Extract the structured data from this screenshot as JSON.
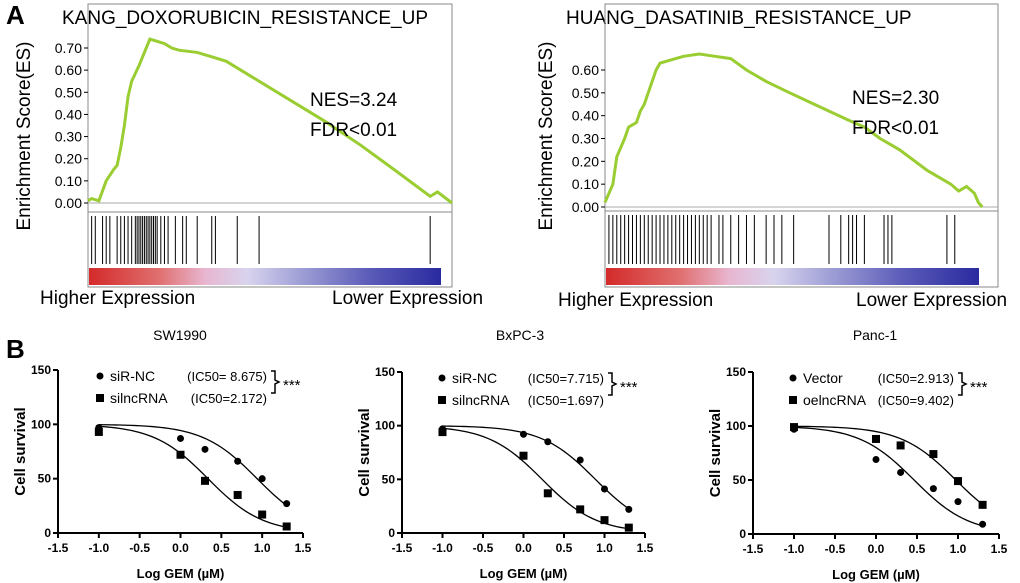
{
  "panel_labels": {
    "a": "A",
    "b": "B"
  },
  "chart_data": [
    {
      "type": "line",
      "panel": "A",
      "title": "KANG_DOXORUBICIN_RESISTANCE_UP",
      "ylabel": "Enrichment Score(ES)",
      "yticks": [
        "0.00",
        "0.10",
        "0.20",
        "0.30",
        "0.40",
        "0.50",
        "0.60",
        "0.70"
      ],
      "ylim": [
        0,
        0.76
      ],
      "annotations": [
        "NES=3.24",
        "FDR<0.01"
      ],
      "left_label": "Higher Expression",
      "right_label": "Lower Expression",
      "line_color": "#9acd32",
      "es_curve": [
        [
          0,
          0.01
        ],
        [
          1,
          0.02
        ],
        [
          3,
          0.01
        ],
        [
          5,
          0.1
        ],
        [
          7,
          0.15
        ],
        [
          8,
          0.17
        ],
        [
          9,
          0.25
        ],
        [
          10,
          0.35
        ],
        [
          11,
          0.48
        ],
        [
          12,
          0.55
        ],
        [
          14,
          0.62
        ],
        [
          15,
          0.66
        ],
        [
          16,
          0.7
        ],
        [
          17,
          0.74
        ],
        [
          19,
          0.73
        ],
        [
          21,
          0.72
        ],
        [
          23,
          0.7
        ],
        [
          25,
          0.69
        ],
        [
          30,
          0.68
        ],
        [
          34,
          0.66
        ],
        [
          38,
          0.64
        ],
        [
          45,
          0.57
        ],
        [
          55,
          0.47
        ],
        [
          65,
          0.37
        ],
        [
          75,
          0.26
        ],
        [
          85,
          0.14
        ],
        [
          94,
          0.03
        ],
        [
          96,
          0.05
        ],
        [
          100,
          0.0
        ]
      ],
      "hits": [
        1,
        2,
        4,
        5,
        6,
        8,
        9,
        10,
        11,
        12,
        13,
        13.5,
        14,
        14.5,
        15,
        15.5,
        16,
        16.5,
        17,
        17.5,
        18,
        18.5,
        19,
        20,
        21,
        22,
        24,
        26,
        27,
        30,
        34,
        35,
        41,
        47,
        94
      ]
    },
    {
      "type": "line",
      "panel": "A",
      "title": "HUANG_DASATINIB_RESISTANCE_UP",
      "ylabel": "Enrichment Score(ES)",
      "yticks": [
        "0.00",
        "0.10",
        "0.20",
        "0.30",
        "0.40",
        "0.50",
        "0.60"
      ],
      "ylim": [
        0,
        0.68
      ],
      "annotations": [
        "NES=2.30",
        "FDR<0.01"
      ],
      "left_label": "Higher Expression",
      "right_label": "Lower Expression",
      "line_color": "#9acd32",
      "es_curve": [
        [
          0,
          0.02
        ],
        [
          2,
          0.1
        ],
        [
          3,
          0.22
        ],
        [
          5,
          0.3
        ],
        [
          6,
          0.35
        ],
        [
          8,
          0.37
        ],
        [
          9,
          0.42
        ],
        [
          10,
          0.45
        ],
        [
          12,
          0.55
        ],
        [
          13,
          0.6
        ],
        [
          14,
          0.63
        ],
        [
          16,
          0.64
        ],
        [
          18,
          0.65
        ],
        [
          20,
          0.66
        ],
        [
          24,
          0.67
        ],
        [
          28,
          0.66
        ],
        [
          32,
          0.65
        ],
        [
          36,
          0.6
        ],
        [
          41,
          0.55
        ],
        [
          47,
          0.5
        ],
        [
          52,
          0.46
        ],
        [
          57,
          0.42
        ],
        [
          62,
          0.38
        ],
        [
          66,
          0.35
        ],
        [
          70,
          0.3
        ],
        [
          75,
          0.25
        ],
        [
          82,
          0.16
        ],
        [
          88,
          0.1
        ],
        [
          90,
          0.07
        ],
        [
          92,
          0.09
        ],
        [
          94,
          0.06
        ],
        [
          95,
          0.02
        ],
        [
          96,
          0.0
        ]
      ],
      "hits": [
        1,
        2,
        3,
        4,
        5,
        6,
        7,
        8,
        9,
        10,
        11,
        12,
        13,
        14,
        15,
        16,
        17,
        18,
        19,
        20,
        21,
        22,
        23,
        24,
        25,
        26,
        27,
        29,
        30,
        32,
        34,
        36,
        38,
        41,
        43,
        45,
        48,
        57,
        60,
        62,
        63,
        64,
        66,
        71,
        72,
        73,
        87,
        89
      ]
    },
    {
      "type": "scatter",
      "panel": "B",
      "title": "SW1990",
      "xlabel": "Log GEM (µM)",
      "ylabel": "Cell survival",
      "xlim": [
        -1.5,
        1.5
      ],
      "ylim": [
        0,
        150
      ],
      "xticks": [
        "-1.5",
        "-1.0",
        "-0.5",
        "0.0",
        "0.5",
        "1.0",
        "1.5"
      ],
      "yticks": [
        "0",
        "50",
        "100",
        "150"
      ],
      "significance": "***",
      "x": [
        -1,
        0,
        0.3,
        0.7,
        1,
        1.3
      ],
      "series": [
        {
          "name": "siR-NC",
          "ic50": "(IC50= 8.675)",
          "ic50_value": 8.675,
          "marker": "circle",
          "values": [
            97,
            87,
            77,
            66,
            50,
            27
          ]
        },
        {
          "name": "silncRNA",
          "ic50": "(IC50=2.172)",
          "ic50_value": 2.172,
          "marker": "square",
          "values": [
            93,
            72,
            48,
            35,
            17,
            6
          ]
        }
      ]
    },
    {
      "type": "scatter",
      "panel": "B",
      "title": "BxPC-3",
      "xlabel": "Log GEM (µM)",
      "ylabel": "Cell survival",
      "xlim": [
        -1.5,
        1.5
      ],
      "ylim": [
        0,
        150
      ],
      "xticks": [
        "-1.5",
        "-1.0",
        "-0.5",
        "0.0",
        "0.5",
        "1.0",
        "1.5"
      ],
      "yticks": [
        "0",
        "50",
        "100",
        "150"
      ],
      "significance": "***",
      "x": [
        -1,
        0,
        0.3,
        0.7,
        1,
        1.3
      ],
      "series": [
        {
          "name": "siR-NC",
          "ic50": "(IC50=7.715)",
          "ic50_value": 7.715,
          "marker": "circle",
          "values": [
            97,
            92,
            85,
            68,
            41,
            22
          ]
        },
        {
          "name": "silncRNA",
          "ic50": "(IC50=1.697)",
          "ic50_value": 1.697,
          "marker": "square",
          "values": [
            94,
            72,
            37,
            22,
            12,
            5
          ]
        }
      ]
    },
    {
      "type": "scatter",
      "panel": "B",
      "title": "Panc-1",
      "xlabel": "Log GEM (µM)",
      "ylabel": "Cell survival",
      "xlim": [
        -1.5,
        1.5
      ],
      "ylim": [
        0,
        150
      ],
      "xticks": [
        "-1.5",
        "-1.0",
        "-0.5",
        "0.0",
        "0.5",
        "1.0",
        "1.5"
      ],
      "yticks": [
        "0",
        "50",
        "100",
        "150"
      ],
      "significance": "***",
      "x": [
        -1,
        0,
        0.3,
        0.7,
        1,
        1.3
      ],
      "series": [
        {
          "name": "Vector",
          "ic50": "(IC50=2.913)",
          "ic50_value": 2.913,
          "marker": "circle",
          "values": [
            97,
            69,
            57,
            42,
            30,
            9
          ]
        },
        {
          "name": "oelncRNA",
          "ic50": "(IC50=9.402)",
          "ic50_value": 9.402,
          "marker": "square",
          "values": [
            99,
            88,
            82,
            74,
            49,
            27
          ]
        }
      ]
    }
  ]
}
